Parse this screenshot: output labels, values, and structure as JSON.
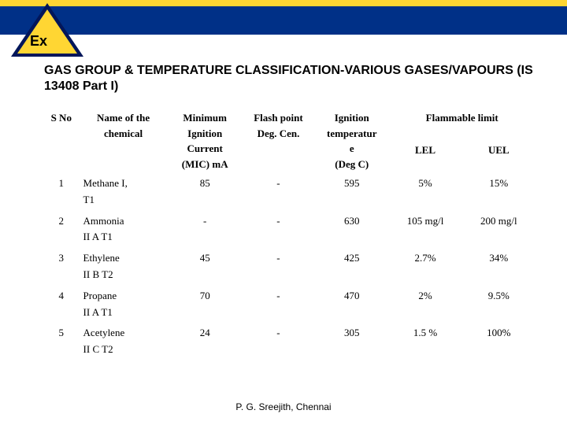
{
  "banner": {
    "ex_label": "Ex"
  },
  "title": "GAS GROUP & TEMPERATURE CLASSIFICATION-VARIOUS GASES/VAPOURS (IS 13408 Part I)",
  "table": {
    "headers": {
      "sno": "S No",
      "name_l1": "Name of the",
      "name_l2": "chemical",
      "mic_l1": "Minimum",
      "mic_l2": "Ignition",
      "mic_l3": "Current",
      "mic_l4": "(MIC) mA",
      "flash_l1": "Flash point",
      "flash_l2": "Deg. Cen.",
      "ign_l1": "Ignition",
      "ign_l2": "temperatur",
      "ign_l3": "e",
      "ign_l4": "(Deg C)",
      "flamm": "Flammable limit",
      "lel": "LEL",
      "uel": "UEL"
    },
    "rows": [
      {
        "sno": "1",
        "name_l1": "Methane I,",
        "name_l2": "T1",
        "mic": "85",
        "flash": "-",
        "ign": "595",
        "lel": "5%",
        "uel": "15%"
      },
      {
        "sno": "2",
        "name_l1": "Ammonia",
        "name_l2": "II A T1",
        "mic": "-",
        "flash": "-",
        "ign": "630",
        "lel": "105 mg/l",
        "uel": "200 mg/l"
      },
      {
        "sno": "3",
        "name_l1": "Ethylene",
        "name_l2": "II B T2",
        "mic": "45",
        "flash": "-",
        "ign": "425",
        "lel": "2.7%",
        "uel": "34%"
      },
      {
        "sno": "4",
        "name_l1": "Propane",
        "name_l2": "II A T1",
        "mic": "70",
        "flash": "-",
        "ign": "470",
        "lel": "2%",
        "uel": "9.5%"
      },
      {
        "sno": "5",
        "name_l1": "Acetylene",
        "name_l2": "II C T2",
        "mic": "24",
        "flash": "-",
        "ign": "305",
        "lel": "1.5 %",
        "uel": "100%"
      }
    ]
  },
  "footer": "P. G. Sreejith, Chennai",
  "colors": {
    "yellow": "#ffd633",
    "blue": "#003087",
    "dark_navy": "#02165a"
  }
}
